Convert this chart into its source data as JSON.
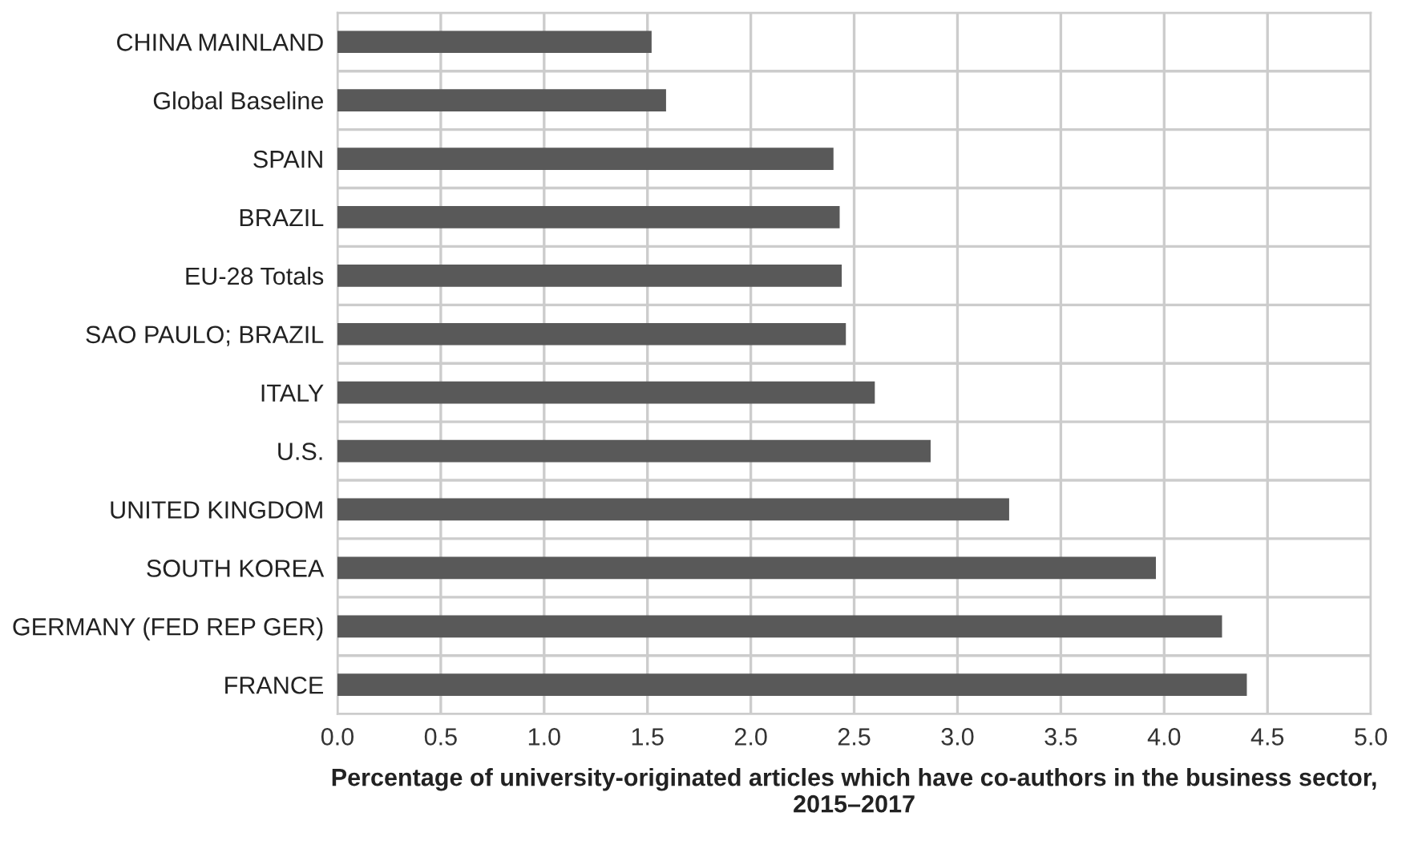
{
  "chart_data": {
    "type": "bar",
    "orientation": "horizontal",
    "xlabel": "Percentage of university-originated articles which have co-authors in the business sector, 2015–2017",
    "categories": [
      "CHINA MAINLAND",
      "Global Baseline",
      "SPAIN",
      "BRAZIL",
      "EU-28 Totals",
      "SAO PAULO; BRAZIL",
      "ITALY",
      "U.S.",
      "UNITED KINGDOM",
      "SOUTH KOREA",
      "GERMANY (FED REP GER)",
      "FRANCE"
    ],
    "values": [
      1.52,
      1.59,
      2.4,
      2.43,
      2.44,
      2.46,
      2.6,
      2.87,
      3.25,
      3.96,
      4.28,
      4.4
    ],
    "color": "#595959",
    "xlim": [
      0,
      5
    ],
    "xticks": [
      {
        "value": 0,
        "label": "0.0"
      },
      {
        "value": 0.5,
        "label": "0.5"
      },
      {
        "value": 1,
        "label": "1.0"
      },
      {
        "value": 1.5,
        "label": "1.5"
      },
      {
        "value": 2,
        "label": "2.0"
      },
      {
        "value": 2.5,
        "label": "2.5"
      },
      {
        "value": 3,
        "label": "3.0"
      },
      {
        "value": 3.5,
        "label": "3.5"
      },
      {
        "value": 4,
        "label": "4.0"
      },
      {
        "value": 4.5,
        "label": "4.5"
      },
      {
        "value": 5,
        "label": "5.0"
      }
    ],
    "grid": true
  }
}
